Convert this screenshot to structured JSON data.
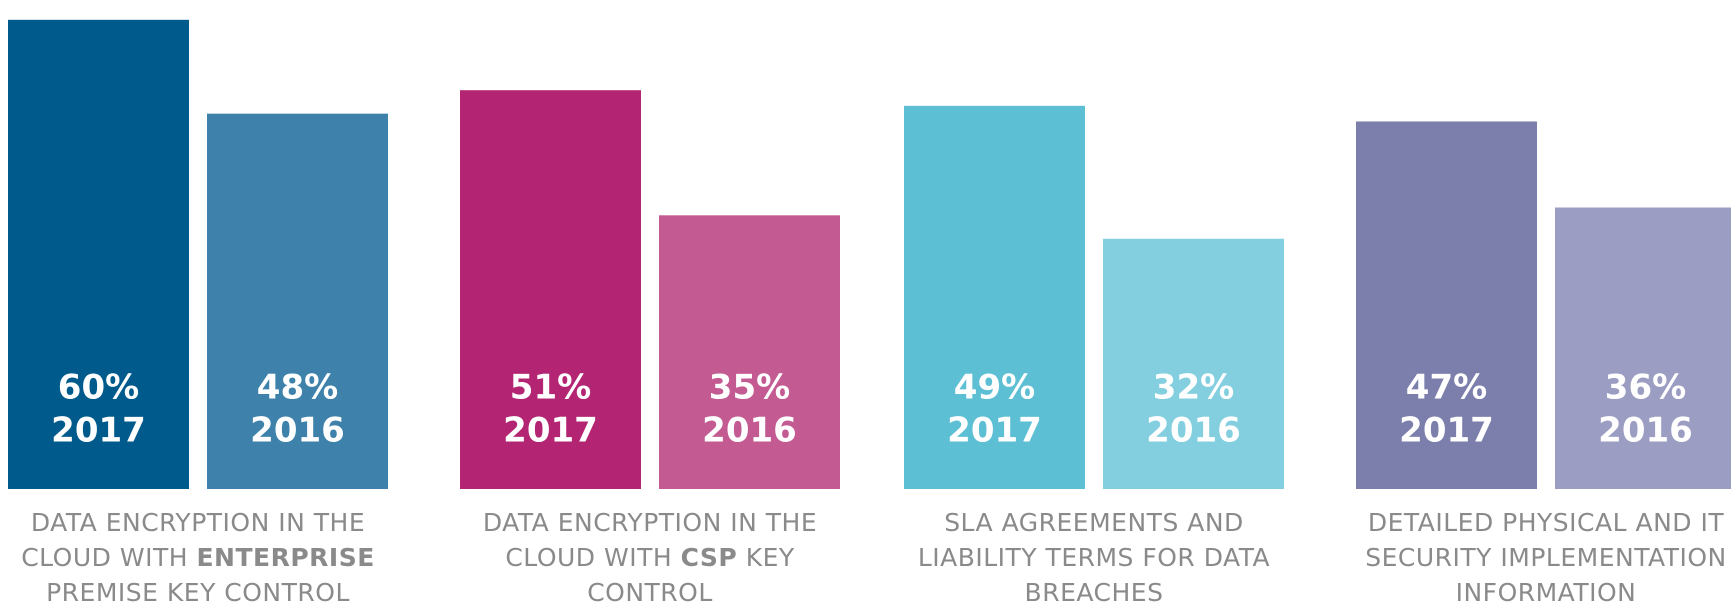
{
  "chart_data": {
    "type": "bar",
    "categories": [
      [
        {
          "text": "DATA ENCRYPTION IN THE CLOUD WITH "
        },
        {
          "text": "ENTERPRISE",
          "bold": true
        },
        {
          "text": " PREMISE KEY CONTROL"
        }
      ],
      [
        {
          "text": "DATA ENCRYPTION IN THE CLOUD WITH "
        },
        {
          "text": "CSP",
          "bold": true
        },
        {
          "text": " KEY CONTROL"
        }
      ],
      [
        {
          "text": "SLA AGREEMENTS AND LIABILITY TERMS FOR DATA BREACHES"
        }
      ],
      [
        {
          "text": "DETAILED PHYSICAL AND IT SECURITY IMPLEMENTATION INFORMATION"
        }
      ]
    ],
    "series": [
      {
        "name": "2017",
        "colors": [
          "#005a8c",
          "#b32572",
          "#5dbfd4",
          "#7c7eab"
        ],
        "values": [
          60,
          51,
          49,
          47
        ],
        "value_labels": [
          "60%",
          "51%",
          "49%",
          "47%"
        ]
      },
      {
        "name": "2016",
        "colors": [
          "#3e82ab",
          "#c45a92",
          "#83cfdf",
          "#9c9dc2"
        ],
        "values": [
          48,
          35,
          32,
          36
        ],
        "value_labels": [
          "48%",
          "35%",
          "32%",
          "36%"
        ]
      }
    ],
    "ylim": [
      0,
      61
    ]
  }
}
